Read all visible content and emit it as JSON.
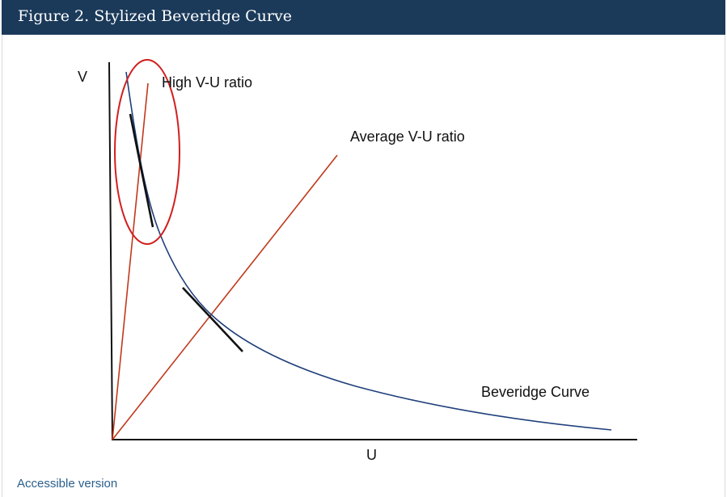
{
  "header": {
    "title": "Figure 2. Stylized Beveridge Curve",
    "background_color": "#1b3a5a"
  },
  "diagram": {
    "axis_label_y": "V",
    "axis_label_x": "U",
    "label_high_ratio": "High V-U ratio",
    "label_average_ratio": "Average V-U ratio",
    "label_curve": "Beveridge Curve",
    "curve_color": "#1f3f7a",
    "ray_color": "#c0391b",
    "highlight_color": "#d0201f",
    "tangent_color": "#111111"
  },
  "footer": {
    "link_label": "Accessible version"
  }
}
